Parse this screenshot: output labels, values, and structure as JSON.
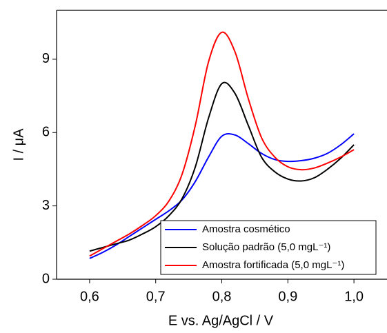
{
  "chart_data": {
    "type": "line",
    "xlabel": "E vs. Ag/AgCl / V",
    "ylabel": "I / μA",
    "x": [
      0.6,
      0.62,
      0.64,
      0.66,
      0.68,
      0.7,
      0.72,
      0.74,
      0.76,
      0.78,
      0.8,
      0.82,
      0.84,
      0.86,
      0.88,
      0.9,
      0.92,
      0.94,
      0.96,
      0.98,
      1.0
    ],
    "series": [
      {
        "name": "Amostra cosmético",
        "color": "#0000ff",
        "values": [
          0.85,
          1.1,
          1.4,
          1.75,
          2.1,
          2.45,
          2.8,
          3.25,
          4.0,
          5.0,
          5.85,
          5.9,
          5.55,
          5.15,
          4.9,
          4.82,
          4.85,
          4.95,
          5.15,
          5.5,
          5.95
        ]
      },
      {
        "name": "Solução padrão (5,0 mgL⁻¹)",
        "color": "#000000",
        "values": [
          1.15,
          1.3,
          1.45,
          1.6,
          1.85,
          2.15,
          2.6,
          3.3,
          4.6,
          6.6,
          8.0,
          7.6,
          6.3,
          5.0,
          4.4,
          4.1,
          4.02,
          4.15,
          4.5,
          4.95,
          5.5
        ]
      },
      {
        "name": "Amostra fortificada (5,0 mgL⁻¹)",
        "color": "#ff0000",
        "values": [
          0.95,
          1.25,
          1.55,
          1.85,
          2.2,
          2.6,
          3.2,
          4.3,
          6.3,
          8.9,
          10.1,
          9.3,
          7.4,
          5.8,
          5.0,
          4.6,
          4.48,
          4.55,
          4.75,
          5.0,
          5.3
        ]
      }
    ],
    "xlim": [
      0.55,
      1.05
    ],
    "ylim": [
      0,
      11
    ],
    "xticks": [
      {
        "value": 0.6,
        "label": "0,6"
      },
      {
        "value": 0.7,
        "label": "0,7"
      },
      {
        "value": 0.8,
        "label": "0,8"
      },
      {
        "value": 0.9,
        "label": "0,9"
      },
      {
        "value": 1.0,
        "label": "1,0"
      }
    ],
    "yticks": [
      0,
      3,
      6,
      9
    ],
    "legend": "lower right",
    "grid": false
  }
}
